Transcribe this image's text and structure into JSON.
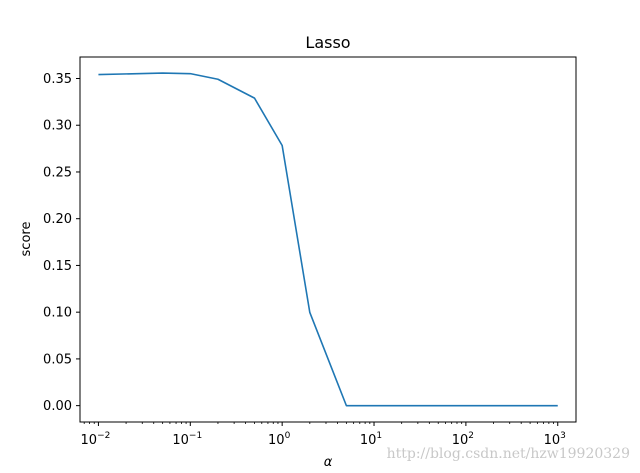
{
  "chart_data": {
    "type": "line",
    "title": "Lasso",
    "xlabel": "α",
    "ylabel": "score",
    "xscale": "log",
    "xlim": [
      0.0063,
      1580
    ],
    "ylim": [
      -0.0175,
      0.373
    ],
    "grid": false,
    "legend": "none",
    "x_ticks": [
      {
        "value": 0.01,
        "base": "10",
        "exp": "−2"
      },
      {
        "value": 0.1,
        "base": "10",
        "exp": "−1"
      },
      {
        "value": 1,
        "base": "10",
        "exp": "0"
      },
      {
        "value": 10,
        "base": "10",
        "exp": "1"
      },
      {
        "value": 100,
        "base": "10",
        "exp": "2"
      },
      {
        "value": 1000,
        "base": "10",
        "exp": "3"
      }
    ],
    "y_ticks": [
      {
        "value": 0.0,
        "label": "0.00"
      },
      {
        "value": 0.05,
        "label": "0.05"
      },
      {
        "value": 0.1,
        "label": "0.10"
      },
      {
        "value": 0.15,
        "label": "0.15"
      },
      {
        "value": 0.2,
        "label": "0.20"
      },
      {
        "value": 0.25,
        "label": "0.25"
      },
      {
        "value": 0.3,
        "label": "0.30"
      },
      {
        "value": 0.35,
        "label": "0.35"
      }
    ],
    "series": [
      {
        "color": "#1f77b4",
        "x": [
          0.01,
          0.05,
          0.1,
          0.2,
          0.5,
          1,
          2,
          5,
          10,
          20,
          50,
          100,
          200,
          500,
          1000
        ],
        "y": [
          0.3542,
          0.3558,
          0.3552,
          0.3492,
          0.329,
          0.2783,
          0.0997,
          0.0,
          0.0,
          0.0,
          0.0,
          0.0,
          0.0,
          0.0,
          0.0
        ]
      }
    ]
  },
  "watermark": "http://blog.csdn.net/hzw19920329"
}
